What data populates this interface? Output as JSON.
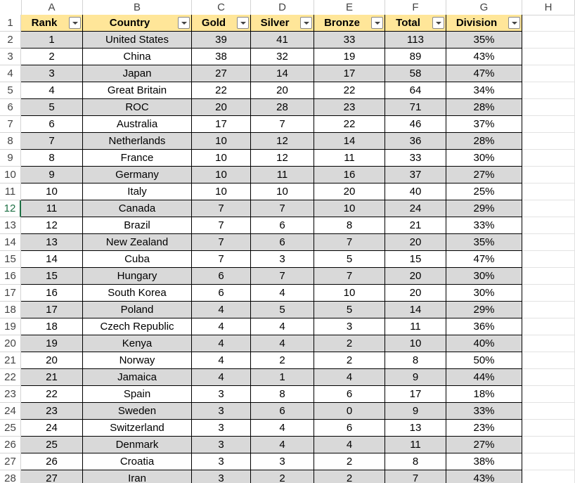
{
  "columns": [
    "A",
    "B",
    "C",
    "D",
    "E",
    "F",
    "G",
    "H"
  ],
  "headers": [
    "Rank",
    "Country",
    "Gold",
    "Silver",
    "Bronze",
    "Total",
    "Division"
  ],
  "active_row": "12",
  "rows": [
    {
      "num": "2",
      "cells": [
        "1",
        "United States",
        "39",
        "41",
        "33",
        "113",
        "35%"
      ]
    },
    {
      "num": "3",
      "cells": [
        "2",
        "China",
        "38",
        "32",
        "19",
        "89",
        "43%"
      ]
    },
    {
      "num": "4",
      "cells": [
        "3",
        "Japan",
        "27",
        "14",
        "17",
        "58",
        "47%"
      ]
    },
    {
      "num": "5",
      "cells": [
        "4",
        "Great Britain",
        "22",
        "20",
        "22",
        "64",
        "34%"
      ]
    },
    {
      "num": "6",
      "cells": [
        "5",
        "ROC",
        "20",
        "28",
        "23",
        "71",
        "28%"
      ]
    },
    {
      "num": "7",
      "cells": [
        "6",
        "Australia",
        "17",
        "7",
        "22",
        "46",
        "37%"
      ]
    },
    {
      "num": "8",
      "cells": [
        "7",
        "Netherlands",
        "10",
        "12",
        "14",
        "36",
        "28%"
      ]
    },
    {
      "num": "9",
      "cells": [
        "8",
        "France",
        "10",
        "12",
        "11",
        "33",
        "30%"
      ]
    },
    {
      "num": "10",
      "cells": [
        "9",
        "Germany",
        "10",
        "11",
        "16",
        "37",
        "27%"
      ]
    },
    {
      "num": "11",
      "cells": [
        "10",
        "Italy",
        "10",
        "10",
        "20",
        "40",
        "25%"
      ]
    },
    {
      "num": "12",
      "cells": [
        "11",
        "Canada",
        "7",
        "7",
        "10",
        "24",
        "29%"
      ]
    },
    {
      "num": "13",
      "cells": [
        "12",
        "Brazil",
        "7",
        "6",
        "8",
        "21",
        "33%"
      ]
    },
    {
      "num": "14",
      "cells": [
        "13",
        "New Zealand",
        "7",
        "6",
        "7",
        "20",
        "35%"
      ]
    },
    {
      "num": "15",
      "cells": [
        "14",
        "Cuba",
        "7",
        "3",
        "5",
        "15",
        "47%"
      ]
    },
    {
      "num": "16",
      "cells": [
        "15",
        "Hungary",
        "6",
        "7",
        "7",
        "20",
        "30%"
      ]
    },
    {
      "num": "17",
      "cells": [
        "16",
        "South Korea",
        "6",
        "4",
        "10",
        "20",
        "30%"
      ]
    },
    {
      "num": "18",
      "cells": [
        "17",
        "Poland",
        "4",
        "5",
        "5",
        "14",
        "29%"
      ]
    },
    {
      "num": "19",
      "cells": [
        "18",
        "Czech Republic",
        "4",
        "4",
        "3",
        "11",
        "36%"
      ]
    },
    {
      "num": "20",
      "cells": [
        "19",
        "Kenya",
        "4",
        "4",
        "2",
        "10",
        "40%"
      ]
    },
    {
      "num": "21",
      "cells": [
        "20",
        "Norway",
        "4",
        "2",
        "2",
        "8",
        "50%"
      ]
    },
    {
      "num": "22",
      "cells": [
        "21",
        "Jamaica",
        "4",
        "1",
        "4",
        "9",
        "44%"
      ]
    },
    {
      "num": "23",
      "cells": [
        "22",
        "Spain",
        "3",
        "8",
        "6",
        "17",
        "18%"
      ]
    },
    {
      "num": "24",
      "cells": [
        "23",
        "Sweden",
        "3",
        "6",
        "0",
        "9",
        "33%"
      ]
    },
    {
      "num": "25",
      "cells": [
        "24",
        "Switzerland",
        "3",
        "4",
        "6",
        "13",
        "23%"
      ]
    },
    {
      "num": "26",
      "cells": [
        "25",
        "Denmark",
        "3",
        "4",
        "4",
        "11",
        "27%"
      ]
    },
    {
      "num": "27",
      "cells": [
        "26",
        "Croatia",
        "3",
        "3",
        "2",
        "8",
        "38%"
      ]
    },
    {
      "num": "28",
      "cells": [
        "27",
        "Iran",
        "3",
        "2",
        "2",
        "7",
        "43%"
      ]
    }
  ],
  "colors": {
    "header_fill": "#ffe699",
    "band_fill": "#d9d9d9",
    "active_row_accent": "#1e7145"
  },
  "icons": {
    "filter": "filter-dropdown-icon"
  }
}
